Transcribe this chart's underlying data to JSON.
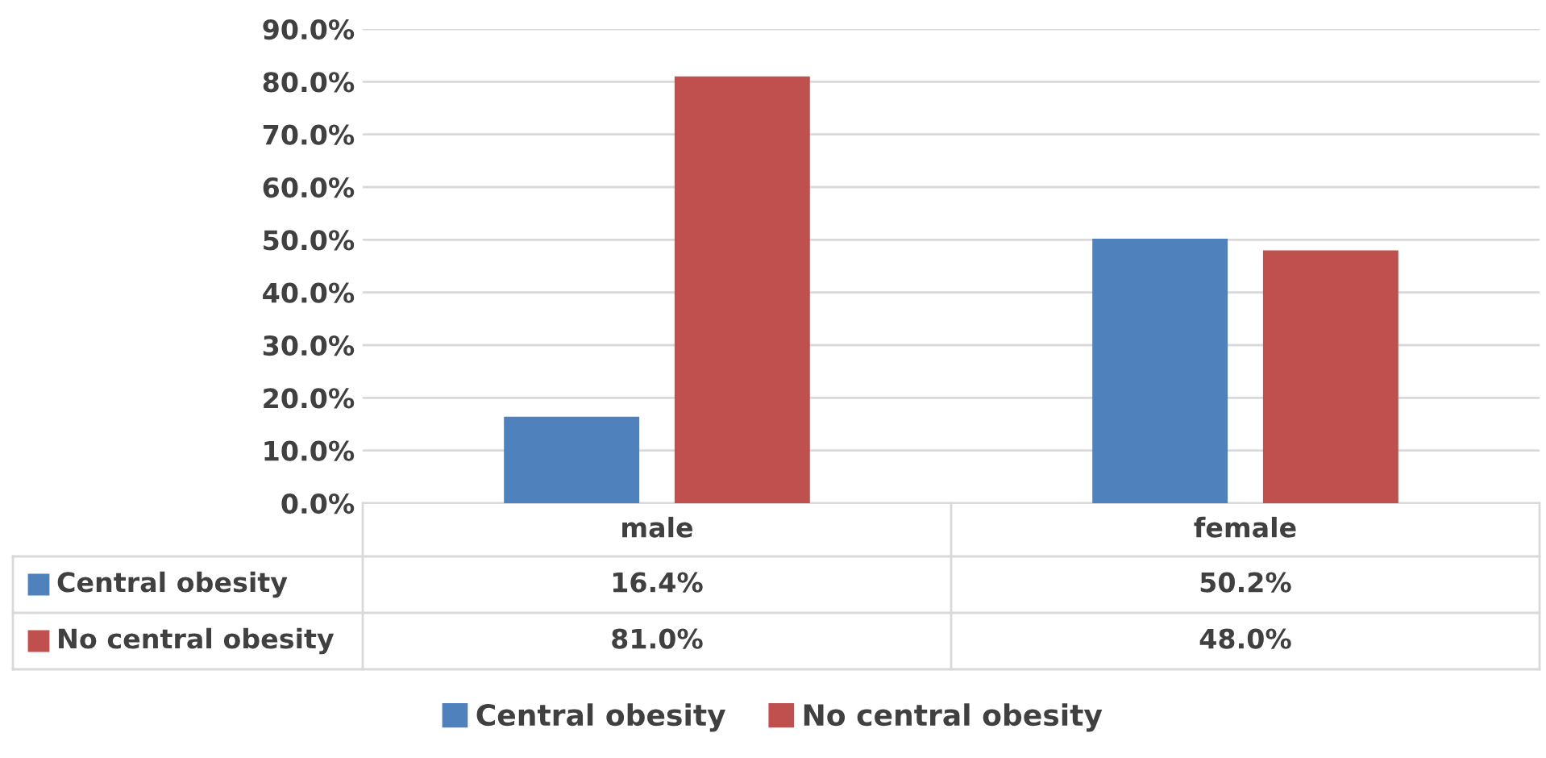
{
  "chart_data": {
    "type": "bar",
    "categories": [
      "male",
      "female"
    ],
    "series": [
      {
        "name": "Central obesity",
        "color": "#4f81bd",
        "values": [
          16.4,
          50.2
        ],
        "value_labels": [
          "16.4%",
          "50.2%"
        ]
      },
      {
        "name": "No central obesity",
        "color": "#c0504d",
        "values": [
          81.0,
          48.0
        ],
        "value_labels": [
          "81.0%",
          "48.0%"
        ]
      }
    ],
    "ylim": [
      0,
      90
    ],
    "yticks": [
      {
        "value": 0,
        "label": "0.0%"
      },
      {
        "value": 10,
        "label": "10.0%"
      },
      {
        "value": 20,
        "label": "20.0%"
      },
      {
        "value": 30,
        "label": "30.0%"
      },
      {
        "value": 40,
        "label": "40.0%"
      },
      {
        "value": 50,
        "label": "50.0%"
      },
      {
        "value": 60,
        "label": "60.0%"
      },
      {
        "value": 70,
        "label": "70.0%"
      },
      {
        "value": 80,
        "label": "80.0%"
      },
      {
        "value": 90,
        "label": "90.0%"
      }
    ],
    "grid": "y",
    "legend": "bottom"
  }
}
